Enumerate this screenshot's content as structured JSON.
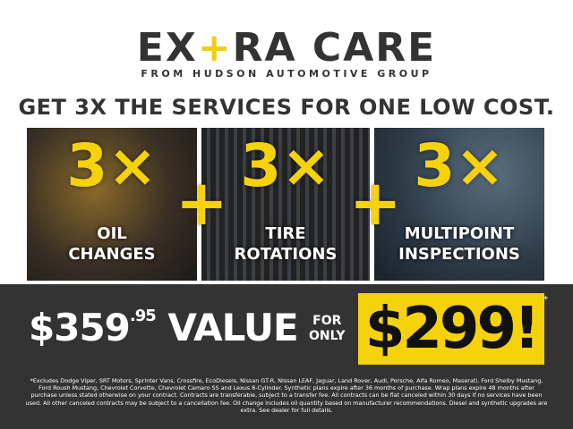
{
  "logo": {
    "pre": "EX",
    "plus": "+",
    "post": "RA CARE",
    "tagline": "FROM HUDSON AUTOMOTIVE GROUP"
  },
  "headline": "GET 3X THE SERVICES FOR ONE LOW COST.",
  "services": [
    {
      "multiplier": "3×",
      "line1": "OIL",
      "line2": "CHANGES"
    },
    {
      "multiplier": "3×",
      "line1": "TIRE",
      "line2": "ROTATIONS"
    },
    {
      "multiplier": "3×",
      "line1": "MULTIPOINT",
      "line2": "INSPECTIONS"
    }
  ],
  "plus_sign": "+",
  "pricing": {
    "value_dollars": "$359",
    "value_cents": ".95",
    "value_label": "VALUE",
    "for": "FOR",
    "only": "ONLY",
    "price": "$299!",
    "asterisk": "*"
  },
  "disclaimer": "*Excludes Dodge Viper, SRT Motors, Sprinter Vans, Crossfire, EcoDiesels, Nissan GT-R, Nissan LEAF, Jaguar, Land Rover, Audi, Porsche, Alfa Romeo, Maserati, Ford Shelby Mustang, Ford Roush Mustang, Chevrolet Corvette, Chevrolet Camaro SS and Lexus 8-Cylinder. Synthetic plans expire after 36 months of purchase. Wrap plans expire 48 months after purchase unless stated otherwise on your contract. Contracts are transferable, subject to a transfer fee. All contracts can be flat canceled within 30 days if no services have been used. All other canceled contracts may be subject to a cancellation fee. Oil change includes oil quantity based on manufacturer recommendations. Diesel and synthetic upgrades are extra. See dealer for full details.",
  "colors": {
    "accent": "#f5d20a",
    "dark": "#333333"
  }
}
